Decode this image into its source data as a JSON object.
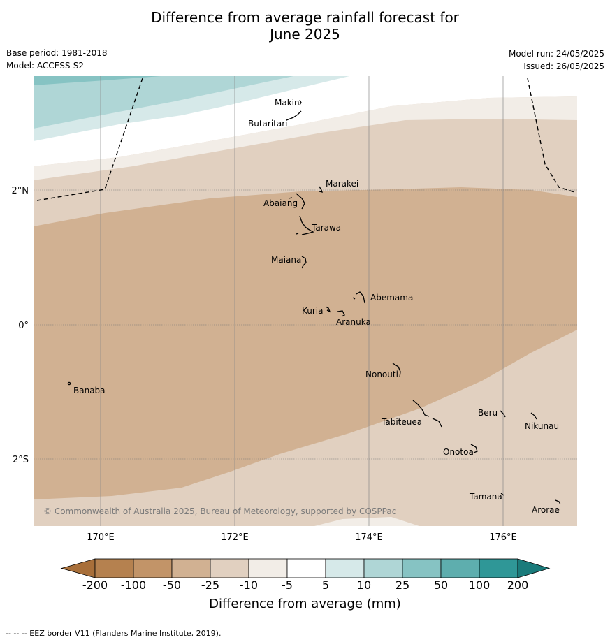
{
  "title_line1": "Difference from average rainfall forecast for",
  "title_line2": "June 2025",
  "base_period": "Base period: 1981-2018",
  "model": "Model: ACCESS-S2",
  "model_run": "Model run: 24/05/2025",
  "issued": "Issued: 26/05/2025",
  "copyright": "© Commonwealth of Australia 2025, Bureau of Meteorology, supported by COSPPac",
  "axes": {
    "lon_labels": [
      "170°E",
      "172°E",
      "174°E",
      "176°E"
    ],
    "lat_labels": [
      "2°N",
      "0°",
      "2°S"
    ]
  },
  "places": [
    "Makin",
    "Butaritari",
    "Marakei",
    "Abaiang",
    "Tarawa",
    "Maiana",
    "Abemama",
    "Kuria",
    "Aranuka",
    "Nonouti",
    "Banaba",
    "Tabiteuea",
    "Beru",
    "Nikunau",
    "Onotoa",
    "Tamana",
    "Arorae"
  ],
  "colorbar": {
    "title": "Difference from average (mm)",
    "labels": [
      "-200",
      "-100",
      "-50",
      "-25",
      "-10",
      "-5",
      "5",
      "10",
      "25",
      "50",
      "100",
      "200"
    ],
    "colors": [
      "#a86f3a",
      "#b5814f",
      "#c29468",
      "#d1b192",
      "#e1d0c0",
      "#f2ede7",
      "#ffffff",
      "#d6e9e9",
      "#afd6d6",
      "#86c3c3",
      "#5eaeae",
      "#2f9797",
      "#1a7b7b"
    ]
  },
  "footer": "-- -- -- EEZ border V11 (Flanders Marine Institute, 2019)."
}
